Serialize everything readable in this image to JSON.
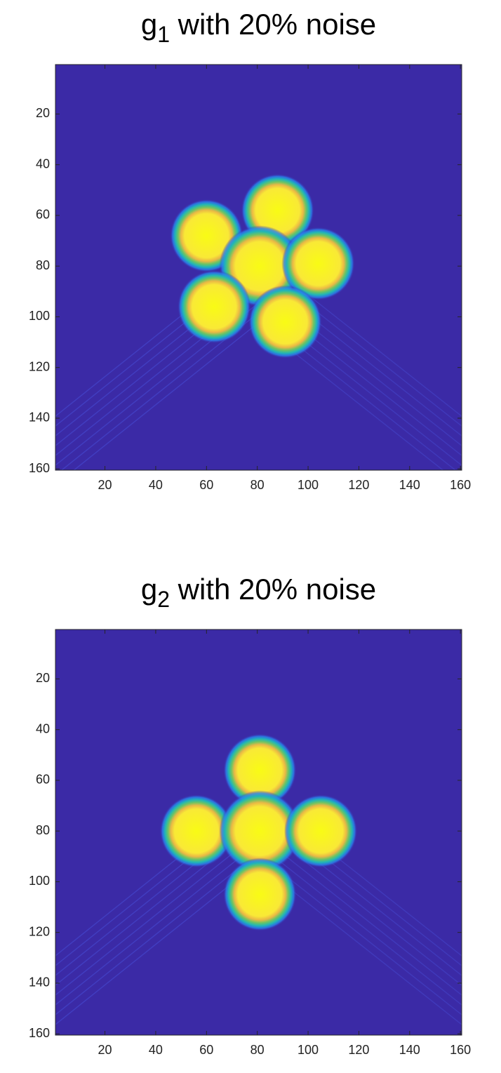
{
  "chart_data": [
    {
      "type": "image",
      "title": {
        "base": "g",
        "subscript": "1",
        "text": " with 20% noise"
      },
      "xlim": [
        0.5,
        160.5
      ],
      "ylim": [
        0.5,
        160.5
      ],
      "xticks": [
        20,
        40,
        60,
        80,
        100,
        120,
        140,
        160
      ],
      "yticks": [
        20,
        40,
        60,
        80,
        100,
        120,
        140,
        160
      ],
      "y_reversed": true,
      "background": "#3b2aa6",
      "blobs": {
        "x": [
          88,
          60,
          81,
          104,
          63,
          91
        ],
        "y": [
          58,
          68,
          80,
          79,
          96,
          102
        ],
        "r": [
          9,
          9,
          10,
          9,
          9,
          9
        ]
      }
    },
    {
      "type": "image",
      "title": {
        "base": "g",
        "subscript": "2",
        "text": " with 20% noise"
      },
      "xlim": [
        0.5,
        160.5
      ],
      "ylim": [
        0.5,
        160.5
      ],
      "xticks": [
        20,
        40,
        60,
        80,
        100,
        120,
        140,
        160
      ],
      "yticks": [
        20,
        40,
        60,
        80,
        100,
        120,
        140,
        160
      ],
      "y_reversed": true,
      "background": "#3b2aa6",
      "blobs": {
        "x": [
          81,
          56,
          81,
          105,
          81
        ],
        "y": [
          56,
          80,
          80,
          80,
          105
        ],
        "r": [
          9,
          9,
          10,
          9,
          9
        ]
      }
    }
  ]
}
